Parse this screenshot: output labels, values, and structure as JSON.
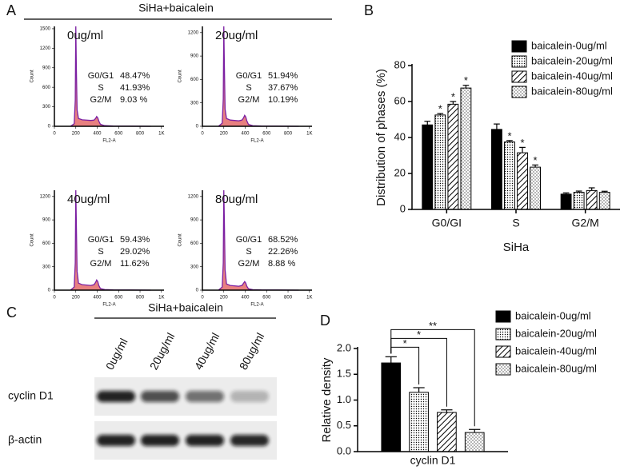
{
  "figure": {
    "panel_labels": [
      "A",
      "B",
      "C",
      "D"
    ],
    "header": "SiHa+baicalein"
  },
  "blot": {
    "header": "SiHa+baicalein",
    "lanes": [
      "0ug/ml",
      "20ug/ml",
      "40ug/ml",
      "80ug/ml"
    ],
    "rows": [
      {
        "label": "cyclin D1",
        "intensity": [
          0.9,
          0.7,
          0.55,
          0.25
        ]
      },
      {
        "label": "β-actin",
        "intensity": [
          0.9,
          0.9,
          0.9,
          0.88
        ]
      }
    ]
  },
  "chart_data": [
    {
      "type": "area",
      "title": "0ug/ml",
      "xlabel": "FL2-A",
      "ylabel": "Count",
      "x": [
        150,
        185,
        195,
        200,
        205,
        212,
        225,
        260,
        300,
        340,
        370,
        385,
        395,
        405,
        415,
        430,
        470,
        550,
        700,
        900
      ],
      "values": [
        0,
        40,
        400,
        1536,
        900,
        250,
        120,
        100,
        95,
        90,
        95,
        120,
        150,
        130,
        80,
        30,
        10,
        5,
        2,
        0
      ],
      "xlim": [
        0,
        1024
      ],
      "xticks": [
        0,
        200,
        400,
        600,
        800,
        {
          "value": 1000,
          "label": "1K"
        }
      ],
      "ylim": [
        0,
        1536
      ],
      "yticks": [
        0,
        300,
        600,
        900,
        1200,
        1500
      ],
      "annotations": [
        [
          "G0/G1",
          "48.47%"
        ],
        [
          "S",
          "41.93%"
        ],
        [
          "G2/M",
          "9.03  %"
        ]
      ],
      "color": "#e88080",
      "line_color": "#7b1fa2"
    },
    {
      "type": "area",
      "title": "20ug/ml",
      "xlabel": "FL2-A",
      "ylabel": "Count",
      "x": [
        150,
        185,
        195,
        200,
        205,
        212,
        225,
        260,
        300,
        340,
        370,
        385,
        395,
        405,
        415,
        430,
        470,
        550,
        700,
        900
      ],
      "values": [
        0,
        40,
        350,
        1280,
        800,
        220,
        100,
        80,
        75,
        70,
        80,
        110,
        140,
        120,
        70,
        25,
        8,
        4,
        2,
        0
      ],
      "xlim": [
        0,
        1024
      ],
      "xticks": [
        0,
        200,
        400,
        600,
        800,
        {
          "value": 1000,
          "label": "1K"
        }
      ],
      "ylim": [
        0,
        1280
      ],
      "yticks": [
        0,
        300,
        600,
        900,
        1200
      ],
      "annotations": [
        [
          "G0/G1",
          "51.94%"
        ],
        [
          "S",
          "37.67%"
        ],
        [
          "G2/M",
          "10.19%"
        ]
      ],
      "color": "#e88080",
      "line_color": "#7b1fa2"
    },
    {
      "type": "area",
      "title": "40ug/ml",
      "xlabel": "FL2-A",
      "ylabel": "Count",
      "x": [
        150,
        185,
        195,
        200,
        205,
        212,
        225,
        260,
        300,
        340,
        370,
        385,
        395,
        405,
        415,
        430,
        470,
        550,
        700,
        900
      ],
      "values": [
        0,
        40,
        350,
        1280,
        850,
        240,
        90,
        70,
        65,
        60,
        70,
        100,
        130,
        110,
        60,
        20,
        8,
        4,
        2,
        0
      ],
      "xlim": [
        0,
        1024
      ],
      "xticks": [
        0,
        200,
        400,
        600,
        800,
        {
          "value": 1000,
          "label": "1K"
        }
      ],
      "ylim": [
        0,
        1280
      ],
      "yticks": [
        0,
        300,
        600,
        900,
        1200
      ],
      "annotations": [
        [
          "G0/G1",
          "59.43%"
        ],
        [
          "S",
          "29.02%"
        ],
        [
          "G2/M",
          "11.62%"
        ]
      ],
      "color": "#e88080",
      "line_color": "#7b1fa2"
    },
    {
      "type": "area",
      "title": "80ug/ml",
      "xlabel": "FL2-A",
      "ylabel": "Count",
      "x": [
        150,
        185,
        195,
        200,
        205,
        212,
        225,
        260,
        300,
        340,
        370,
        385,
        395,
        405,
        415,
        430,
        470,
        550,
        700,
        900
      ],
      "values": [
        0,
        40,
        350,
        1280,
        900,
        260,
        80,
        60,
        55,
        50,
        60,
        90,
        110,
        90,
        50,
        18,
        6,
        3,
        2,
        0
      ],
      "xlim": [
        0,
        1024
      ],
      "xticks": [
        0,
        200,
        400,
        600,
        800,
        {
          "value": 1000,
          "label": "1K"
        }
      ],
      "ylim": [
        0,
        1280
      ],
      "yticks": [
        0,
        300,
        600,
        900,
        1200
      ],
      "annotations": [
        [
          "G0/G1",
          "68.52%"
        ],
        [
          "S",
          "22.26%"
        ],
        [
          "G2/M",
          "8.88  %"
        ]
      ],
      "color": "#e88080",
      "line_color": "#7b1fa2"
    },
    {
      "type": "bar",
      "ylabel": "Distribution of phases (%)",
      "xlabel": "SiHa",
      "categories": [
        "G0/GI",
        "S",
        "G2/M"
      ],
      "series": [
        {
          "name": "baicalein-0ug/ml",
          "color": "#000000",
          "pattern": "solid",
          "values": [
            47,
            44.5,
            8.5
          ],
          "errors": [
            2,
            3,
            0.7
          ],
          "significance": [
            null,
            null,
            null
          ]
        },
        {
          "name": "baicalein-20ug/ml",
          "color": "#000000",
          "pattern": "dots",
          "values": [
            52.5,
            37.5,
            9.5
          ],
          "errors": [
            0.8,
            0.8,
            0.7
          ],
          "significance": [
            "*",
            "*",
            null
          ]
        },
        {
          "name": "baicalein-40ug/ml",
          "color": "#000000",
          "pattern": "hatch",
          "values": [
            58.5,
            31.5,
            10.5
          ],
          "errors": [
            1.5,
            3,
            1.5
          ],
          "significance": [
            "*",
            "*",
            null
          ]
        },
        {
          "name": "baicalein-80ug/ml",
          "color": "#000000",
          "pattern": "sparse",
          "values": [
            67.5,
            23.5,
            9.5
          ],
          "errors": [
            1.5,
            1.2,
            0.6
          ],
          "significance": [
            "*",
            "*",
            null
          ]
        }
      ],
      "ylim": [
        0,
        80
      ],
      "yticks": [
        0,
        20,
        40,
        60,
        80
      ],
      "legend": "top-right"
    },
    {
      "type": "bar",
      "ylabel": "Relative density",
      "categories": [
        "cyclin D1"
      ],
      "series": [
        {
          "name": "baicalein-0ug/ml",
          "color": "#000000",
          "pattern": "solid",
          "values": [
            1.72
          ],
          "errors": [
            0.12
          ]
        },
        {
          "name": "baicalein-20ug/ml",
          "color": "#000000",
          "pattern": "dots",
          "values": [
            1.15
          ],
          "errors": [
            0.09
          ]
        },
        {
          "name": "baicalein-40ug/ml",
          "color": "#000000",
          "pattern": "hatch",
          "values": [
            0.76
          ],
          "errors": [
            0.05
          ]
        },
        {
          "name": "baicalein-80ug/ml",
          "color": "#000000",
          "pattern": "sparse",
          "values": [
            0.37
          ],
          "errors": [
            0.06
          ]
        }
      ],
      "comparisons": [
        {
          "pair": [
            0,
            1
          ],
          "label": "*"
        },
        {
          "pair": [
            0,
            2
          ],
          "label": "*"
        },
        {
          "pair": [
            0,
            3
          ],
          "label": "**"
        }
      ],
      "ylim": [
        0,
        2.0
      ],
      "yticks": [
        {
          "value": 0,
          "label": "0.0"
        },
        {
          "value": 0.5,
          "label": "0.5"
        },
        {
          "value": 1,
          "label": "1.0"
        },
        {
          "value": 1.5,
          "label": "1.5"
        },
        {
          "value": 2,
          "label": "2.0"
        }
      ],
      "legend": "top-right"
    }
  ]
}
